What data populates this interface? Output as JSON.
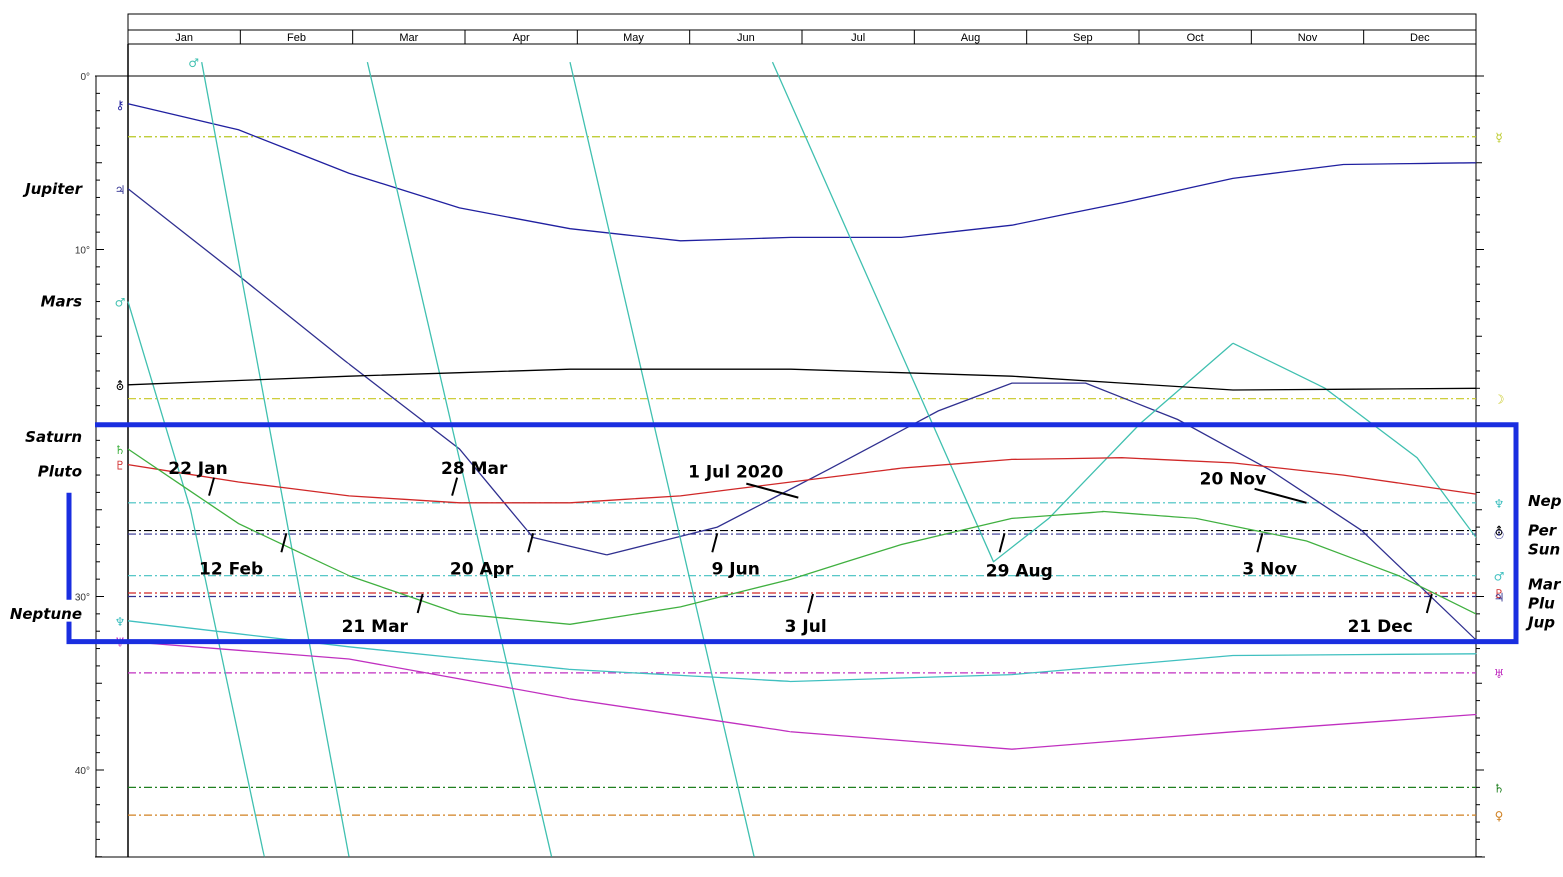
{
  "header": {
    "year": "2020"
  },
  "chart_data": {
    "type": "line",
    "months": [
      "Jan",
      "Feb",
      "Mar",
      "Apr",
      "May",
      "Jun",
      "Jul",
      "Aug",
      "Sep",
      "Oct",
      "Nov",
      "Dec"
    ],
    "ylim": [
      0,
      45
    ],
    "y_ticks": [
      {
        "value": 0,
        "label": "0°"
      },
      {
        "value": 10,
        "label": "10°"
      },
      {
        "value": 30,
        "label": "30°"
      },
      {
        "value": 40,
        "label": "40°"
      }
    ],
    "x_domain_days": [
      0,
      366
    ],
    "series": [
      {
        "key": "chiron",
        "color": "#2020a0",
        "glyph": "⚷",
        "points": [
          [
            0,
            1.6
          ],
          [
            30,
            3.1
          ],
          [
            60,
            5.6
          ],
          [
            90,
            7.6
          ],
          [
            120,
            8.8
          ],
          [
            150,
            9.5
          ],
          [
            180,
            9.3
          ],
          [
            210,
            9.3
          ],
          [
            240,
            8.6
          ],
          [
            270,
            7.3
          ],
          [
            300,
            5.9
          ],
          [
            330,
            5.1
          ],
          [
            366,
            5.0
          ]
        ]
      },
      {
        "key": "jupiter",
        "color": "#303090",
        "glyph": "♃",
        "points": [
          [
            0,
            6.5
          ],
          [
            30,
            11.5
          ],
          [
            60,
            16.6
          ],
          [
            90,
            21.5
          ],
          [
            110,
            26.6
          ],
          [
            130,
            27.6
          ],
          [
            160,
            26.0
          ],
          [
            190,
            22.7
          ],
          [
            220,
            19.3
          ],
          [
            240,
            17.7
          ],
          [
            260,
            17.7
          ],
          [
            285,
            19.8
          ],
          [
            310,
            22.7
          ],
          [
            335,
            26.2
          ],
          [
            366,
            32.5
          ]
        ]
      },
      {
        "key": "mars",
        "color": "#40c0b0",
        "glyph": "♂",
        "points": [
          [
            20,
            -0.8
          ],
          [
            60,
            45
          ],
          [
            65,
            -0.8
          ],
          [
            115,
            45
          ],
          [
            120,
            -0.8
          ],
          [
            170,
            45
          ],
          [
            175,
            -0.8
          ],
          [
            235,
            28.0
          ],
          [
            250,
            25.5
          ],
          [
            275,
            20.0
          ],
          [
            300,
            15.4
          ],
          [
            325,
            18.0
          ],
          [
            350,
            22.0
          ],
          [
            366,
            26.6
          ]
        ]
      },
      {
        "key": "mars_start",
        "color": "#40c0b0",
        "glyph": "♂",
        "points": [
          [
            0,
            13.0
          ],
          [
            17,
            25.0
          ],
          [
            37,
            45
          ]
        ]
      },
      {
        "key": "pholus",
        "color": "#000000",
        "glyph": "⛢",
        "points": [
          [
            0,
            17.8
          ],
          [
            60,
            17.3
          ],
          [
            120,
            16.9
          ],
          [
            180,
            16.9
          ],
          [
            240,
            17.3
          ],
          [
            300,
            18.1
          ],
          [
            366,
            18.0
          ]
        ]
      },
      {
        "key": "pluto",
        "color": "#d02828",
        "glyph": "♇",
        "points": [
          [
            0,
            22.4
          ],
          [
            30,
            23.4
          ],
          [
            60,
            24.2
          ],
          [
            90,
            24.6
          ],
          [
            120,
            24.6
          ],
          [
            150,
            24.2
          ],
          [
            180,
            23.4
          ],
          [
            210,
            22.6
          ],
          [
            240,
            22.1
          ],
          [
            270,
            22.0
          ],
          [
            300,
            22.3
          ],
          [
            330,
            23.0
          ],
          [
            366,
            24.1
          ]
        ]
      },
      {
        "key": "saturn",
        "color": "#40b040",
        "glyph": "♄",
        "points": [
          [
            0,
            21.5
          ],
          [
            30,
            25.8
          ],
          [
            60,
            28.8
          ],
          [
            90,
            31.0
          ],
          [
            120,
            31.6
          ],
          [
            150,
            30.6
          ],
          [
            180,
            29.0
          ],
          [
            210,
            27.0
          ],
          [
            240,
            25.5
          ],
          [
            265,
            25.1
          ],
          [
            290,
            25.5
          ],
          [
            320,
            26.8
          ],
          [
            345,
            28.8
          ],
          [
            366,
            31.0
          ]
        ]
      },
      {
        "key": "neptune",
        "color": "#40c0c0",
        "glyph": "♆",
        "points": [
          [
            0,
            31.4
          ],
          [
            60,
            32.9
          ],
          [
            120,
            34.2
          ],
          [
            180,
            34.9
          ],
          [
            240,
            34.5
          ],
          [
            300,
            33.4
          ],
          [
            366,
            33.3
          ]
        ]
      },
      {
        "key": "uranus",
        "color": "#c030c0",
        "glyph": "♅",
        "points": [
          [
            0,
            32.6
          ],
          [
            60,
            33.6
          ],
          [
            120,
            35.9
          ],
          [
            180,
            37.8
          ],
          [
            240,
            38.8
          ],
          [
            300,
            37.8
          ],
          [
            366,
            36.8
          ]
        ]
      }
    ],
    "hlines": [
      {
        "value": 3.5,
        "color": "#b8c820",
        "style": "dash-dot",
        "glyph": "☿"
      },
      {
        "value": 18.6,
        "color": "#c8c820",
        "style": "dash-dot",
        "glyph": "☽"
      },
      {
        "value": 24.6,
        "color": "#40c0c0",
        "style": "dash-dot",
        "glyph": "♆"
      },
      {
        "value": 26.2,
        "color": "#000000",
        "style": "dash-dot",
        "glyph": "⛢"
      },
      {
        "value": 26.4,
        "color": "#303090",
        "style": "dash-dot",
        "glyph": "☉"
      },
      {
        "value": 28.8,
        "color": "#40c0c0",
        "style": "dash-dot",
        "glyph": "♂"
      },
      {
        "value": 29.8,
        "color": "#d02828",
        "style": "dash-dot",
        "glyph": "♇"
      },
      {
        "value": 30.0,
        "color": "#303090",
        "style": "dash-dot",
        "glyph": "♃"
      },
      {
        "value": 34.4,
        "color": "#c030c0",
        "style": "dash-dot",
        "glyph": "♅"
      },
      {
        "value": 41.0,
        "color": "#208020",
        "style": "dash-dot",
        "glyph": "♄"
      },
      {
        "value": 42.6,
        "color": "#d08020",
        "style": "dash-dot",
        "glyph": "♀"
      }
    ],
    "left_labels": [
      {
        "text": "Jupiter",
        "value": 6.5
      },
      {
        "text": "Mars",
        "value": 13.0
      },
      {
        "text": "Saturn",
        "value": 20.8
      },
      {
        "text": "Pluto",
        "value": 22.8
      },
      {
        "text": "Neptune",
        "value": 31.0
      }
    ],
    "right_labels": [
      {
        "text": "Nep",
        "value": 24.5
      },
      {
        "text": "Per",
        "value": 26.2
      },
      {
        "text": "Sun",
        "value": 27.3
      },
      {
        "text": "Mar",
        "value": 29.3
      },
      {
        "text": "Plu",
        "value": 30.4
      },
      {
        "text": "Jup",
        "value": 31.5
      }
    ],
    "annotations": [
      {
        "text": "22 Jan",
        "day": 22,
        "value": 24.3,
        "label_day": 19,
        "label_value": 22.6,
        "side": "above"
      },
      {
        "text": "28 Mar",
        "day": 88,
        "value": 24.3,
        "label_day": 94,
        "label_value": 22.6,
        "side": "above"
      },
      {
        "text": "1 Jul 2020",
        "day": 182,
        "value": 24.3,
        "label_day": 165,
        "label_value": 22.8,
        "side": "above-left"
      },
      {
        "text": "20 Nov",
        "day": 320,
        "value": 24.6,
        "label_day": 300,
        "label_value": 23.2,
        "side": "above-left"
      },
      {
        "text": "12 Feb",
        "day": 43,
        "value": 26.3,
        "label_day": 28,
        "label_value": 28.4,
        "side": "below"
      },
      {
        "text": "20 Apr",
        "day": 110,
        "value": 26.3,
        "label_day": 96,
        "label_value": 28.4,
        "side": "below"
      },
      {
        "text": "9 Jun",
        "day": 160,
        "value": 26.3,
        "label_day": 165,
        "label_value": 28.4,
        "side": "below"
      },
      {
        "text": "29 Aug",
        "day": 238,
        "value": 26.3,
        "label_day": 242,
        "label_value": 28.5,
        "side": "below"
      },
      {
        "text": "3 Nov",
        "day": 308,
        "value": 26.3,
        "label_day": 310,
        "label_value": 28.4,
        "side": "below"
      },
      {
        "text": "21 Mar",
        "day": 80,
        "value": 29.8,
        "label_day": 67,
        "label_value": 31.7,
        "side": "below"
      },
      {
        "text": "3 Jul",
        "day": 186,
        "value": 29.8,
        "label_day": 184,
        "label_value": 31.7,
        "side": "below"
      },
      {
        "text": "21 Dec",
        "day": 354,
        "value": 29.8,
        "label_day": 340,
        "label_value": 31.7,
        "side": "below"
      }
    ],
    "highlight_box": {
      "color": "#1a2ee0",
      "y_range": [
        20.1,
        32.6
      ]
    }
  }
}
